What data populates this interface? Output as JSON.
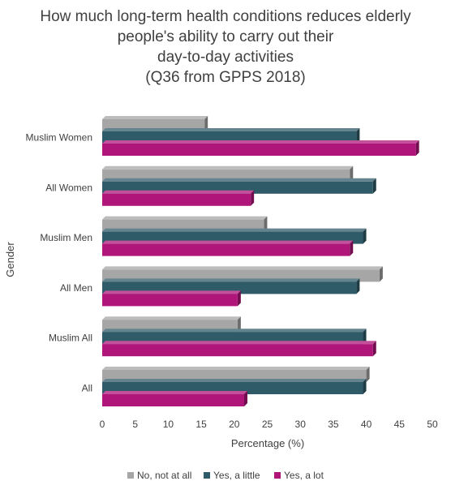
{
  "chart_data": {
    "type": "bar",
    "orientation": "horizontal",
    "title_lines": [
      "How much long-term health conditions reduces elderly",
      "people's ability to carry out their",
      "day-to-day activities",
      "(Q36 from GPPS 2018)"
    ],
    "xlabel": "Percentage (%)",
    "ylabel": "Gender",
    "xlim": [
      0,
      50
    ],
    "xticks": [
      0,
      5,
      10,
      15,
      20,
      25,
      30,
      35,
      40,
      45,
      50
    ],
    "grid": false,
    "legend_position": "bottom",
    "bar_style": "3d",
    "categories": [
      "Muslim Women",
      "All Women",
      "Muslim Men",
      "All Men",
      "Muslim All",
      "All"
    ],
    "series": [
      {
        "name": "No, not at all",
        "color": "#a6a6a6",
        "values": [
          15.5,
          37.5,
          24.5,
          42,
          20.5,
          40
        ]
      },
      {
        "name": "Yes, a little",
        "color": "#2f5a68",
        "values": [
          38.5,
          41,
          39.5,
          38.5,
          39.5,
          39.5
        ]
      },
      {
        "name": "Yes, a lot",
        "color": "#b0157a",
        "values": [
          47.5,
          22.5,
          37.5,
          20.5,
          41,
          21.5
        ]
      }
    ]
  }
}
